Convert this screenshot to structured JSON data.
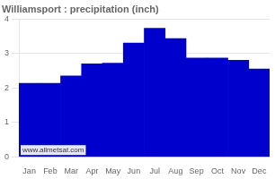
{
  "chart_data": {
    "type": "bar",
    "title": "Williamsport : precipitation (inch)",
    "categories": [
      "Jan",
      "Feb",
      "Mar",
      "Apr",
      "May",
      "Jun",
      "Jul",
      "Aug",
      "Sep",
      "Oct",
      "Nov",
      "Dec"
    ],
    "values": [
      2.13,
      2.13,
      2.35,
      2.7,
      2.72,
      3.3,
      3.73,
      3.43,
      2.87,
      2.87,
      2.8,
      2.55
    ],
    "color": "#0000cc",
    "ylim": [
      0,
      4
    ],
    "yticks": [
      0,
      1,
      2,
      3,
      4
    ],
    "grid": true,
    "annotations": [
      "www.allmetsat.com"
    ]
  }
}
